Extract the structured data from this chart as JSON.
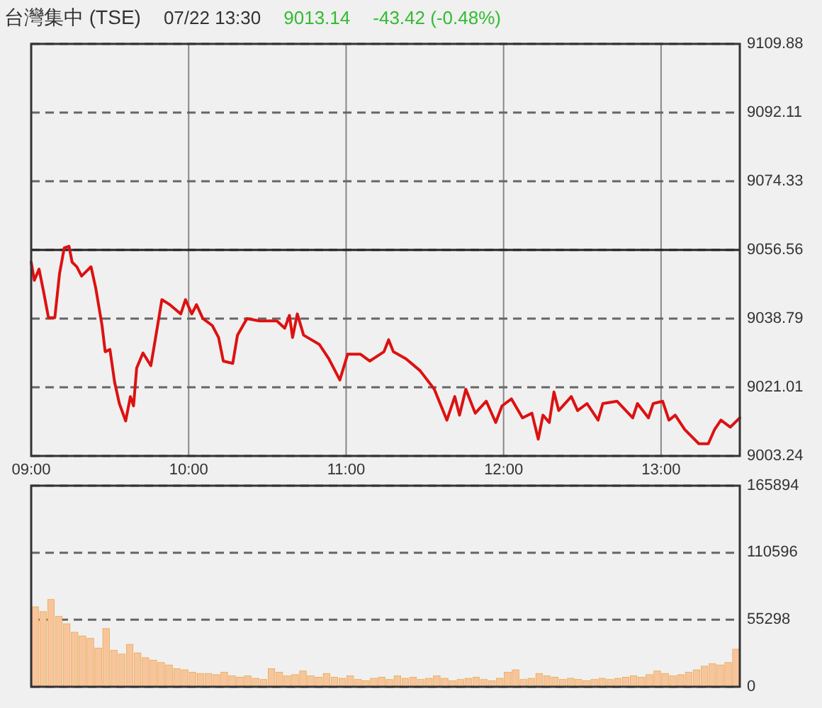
{
  "chart_data": [
    {
      "type": "line",
      "title": "台灣集中 (TSE)",
      "annotations": [
        "07/22 13:30",
        "9013.14",
        "-43.42 (-0.48%)"
      ],
      "x": [
        9.0,
        9.02,
        9.05,
        9.08,
        9.11,
        9.15,
        9.18,
        9.21,
        9.24,
        9.26,
        9.29,
        9.32,
        9.38,
        9.41,
        9.45,
        9.47,
        9.5,
        9.53,
        9.56,
        9.6,
        9.63,
        9.65,
        9.67,
        9.71,
        9.76,
        9.8,
        9.83,
        9.88,
        9.95,
        9.98,
        10.02,
        10.05,
        10.09,
        10.15,
        10.19,
        10.22,
        10.28,
        10.31,
        10.37,
        10.45,
        10.56,
        10.61,
        10.64,
        10.66,
        10.69,
        10.73,
        10.83,
        10.89,
        10.96,
        11.01,
        11.09,
        11.15,
        11.24,
        11.27,
        11.3,
        11.38,
        11.47,
        11.56,
        11.64,
        11.69,
        11.72,
        11.76,
        11.82,
        11.89,
        11.95,
        11.99,
        12.05,
        12.12,
        12.18,
        12.22,
        12.25,
        12.29,
        12.32,
        12.35,
        12.43,
        12.47,
        12.53,
        12.6,
        12.63,
        12.72,
        12.82,
        12.85,
        12.92,
        12.95,
        13.01,
        13.05,
        13.09,
        13.15,
        13.24,
        13.3,
        13.34,
        13.38,
        13.44,
        13.5
      ],
      "values": [
        9053.4,
        9048.7,
        9051.6,
        9045.5,
        9039.0,
        9039.0,
        9050.4,
        9057.1,
        9057.5,
        9053.4,
        9052.2,
        9049.8,
        9052.2,
        9046.7,
        9037.0,
        9030.2,
        9030.8,
        9022.3,
        9016.8,
        9012.3,
        9018.6,
        9016.2,
        9026.0,
        9029.9,
        9026.6,
        9036.3,
        9043.7,
        9042.4,
        9040.0,
        9043.7,
        9040.0,
        9042.4,
        9038.8,
        9037.0,
        9033.9,
        9027.8,
        9027.2,
        9034.5,
        9038.8,
        9038.2,
        9038.2,
        9036.3,
        9039.6,
        9033.9,
        9040.0,
        9034.5,
        9032.1,
        9028.4,
        9022.9,
        9029.6,
        9029.6,
        9027.8,
        9030.2,
        9033.3,
        9030.2,
        9028.4,
        9025.3,
        9020.5,
        9012.5,
        9018.6,
        9013.8,
        9020.5,
        9014.3,
        9017.4,
        9011.9,
        9016.2,
        9018.0,
        9013.1,
        9014.3,
        9007.6,
        9013.8,
        9011.9,
        9019.8,
        9015.0,
        9018.6,
        9015.0,
        9016.8,
        9012.5,
        9016.8,
        9017.4,
        9013.1,
        9016.8,
        9013.1,
        9016.8,
        9017.4,
        9012.5,
        9013.8,
        9010.1,
        9006.4,
        9006.4,
        9010.1,
        9012.5,
        9010.7,
        9013.1
      ],
      "color": "#dd1111",
      "line_style": "solid",
      "xlim": [
        9,
        13.5
      ],
      "xticks": [
        {
          "value": 9,
          "label": "09:00"
        },
        {
          "value": 10,
          "label": "10:00"
        },
        {
          "value": 11,
          "label": "11:00"
        },
        {
          "value": 12,
          "label": "12:00"
        },
        {
          "value": 13,
          "label": "13:00"
        }
      ],
      "ylim": [
        9003.24,
        9109.88
      ],
      "yticks": [
        9003.24,
        9021.01,
        9038.79,
        9056.56,
        9074.33,
        9092.11,
        9109.88
      ],
      "grid": true,
      "ref_lines": [
        {
          "axis": "y",
          "value": 9056.56,
          "color": "#222222",
          "line_style": "solid"
        }
      ]
    },
    {
      "type": "bar",
      "color": "#f8c49c",
      "x": [
        9,
        9.05,
        9.1,
        9.15,
        9.2,
        9.25,
        9.3,
        9.35,
        9.4,
        9.45,
        9.5,
        9.55,
        9.6,
        9.65,
        9.7,
        9.75,
        9.8,
        9.85,
        9.9,
        9.95,
        10,
        10.05,
        10.1,
        10.15,
        10.2,
        10.25,
        10.3,
        10.35,
        10.4,
        10.45,
        10.5,
        10.55,
        10.6,
        10.65,
        10.7,
        10.75,
        10.8,
        10.85,
        10.9,
        10.95,
        11,
        11.05,
        11.1,
        11.15,
        11.2,
        11.25,
        11.3,
        11.35,
        11.4,
        11.45,
        11.5,
        11.55,
        11.6,
        11.65,
        11.7,
        11.75,
        11.8,
        11.85,
        11.9,
        11.95,
        12,
        12.05,
        12.1,
        12.15,
        12.2,
        12.25,
        12.3,
        12.35,
        12.4,
        12.45,
        12.5,
        12.55,
        12.6,
        12.65,
        12.7,
        12.75,
        12.8,
        12.85,
        12.9,
        12.95,
        13,
        13.05,
        13.1,
        13.15,
        13.2,
        13.25,
        13.3,
        13.35,
        13.4,
        13.45
      ],
      "values": [
        66000,
        62000,
        72000,
        58000,
        52000,
        45000,
        42000,
        40000,
        32000,
        48000,
        30000,
        27000,
        35000,
        28000,
        24000,
        22000,
        20000,
        18000,
        15000,
        14000,
        12000,
        11000,
        11000,
        10000,
        12000,
        9000,
        8000,
        9000,
        7000,
        6000,
        15000,
        12000,
        9000,
        10000,
        13000,
        9000,
        8000,
        11000,
        8000,
        7000,
        9000,
        6000,
        5000,
        7000,
        8000,
        6000,
        9000,
        7000,
        8000,
        6000,
        7000,
        9000,
        7000,
        5000,
        6000,
        7000,
        8000,
        6000,
        5000,
        7000,
        12000,
        14000,
        6000,
        7000,
        11000,
        9000,
        8000,
        6000,
        7000,
        6000,
        5000,
        6000,
        7000,
        6000,
        7000,
        8000,
        9000,
        8000,
        10000,
        13000,
        11000,
        9000,
        10000,
        12000,
        14000,
        17000,
        19000,
        18000,
        20000,
        31000
      ],
      "xlim": [
        9,
        13.5
      ],
      "ylim": [
        0,
        165894
      ],
      "yticks": [
        0,
        55298,
        110596,
        165894
      ],
      "grid": "y",
      "tick_labels": "y"
    }
  ]
}
